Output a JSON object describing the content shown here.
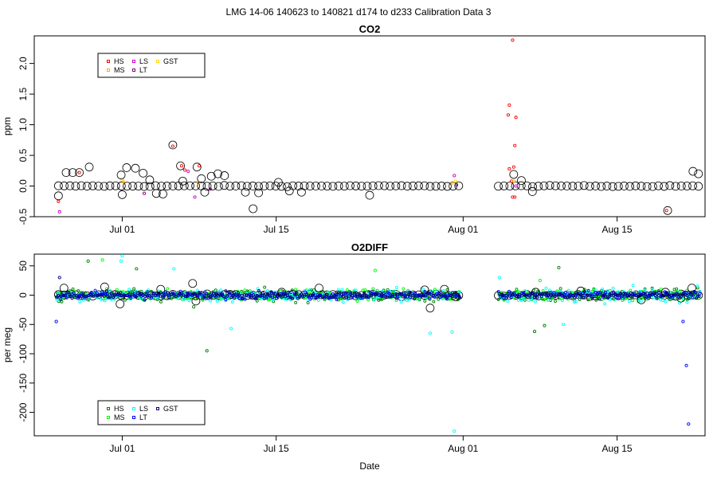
{
  "main_title": "LMG   14-06    140623 to 140821    d174 to d233   Calibration Data 3",
  "chart_data": [
    {
      "type": "scatter",
      "title": "CO2",
      "ylabel": "ppm",
      "xlabel": "",
      "x_range_days": [
        174,
        235
      ],
      "ylim": [
        -0.5,
        2.45
      ],
      "yticks": [
        -0.5,
        0.0,
        0.5,
        1.0,
        1.5,
        2.0
      ],
      "ytick_labels": [
        "-0.5",
        "0.0",
        "0.5",
        "1.0",
        "1.5",
        "2.0"
      ],
      "xticks": [
        182,
        196,
        213,
        227
      ],
      "xtick_labels": [
        "Jul 01",
        "Jul 15",
        "Aug 01",
        "Aug 15"
      ],
      "grid": false,
      "legend_position": "top-left",
      "legend": [
        {
          "name": "HS",
          "color": "#ff0000"
        },
        {
          "name": "LS",
          "color": "#cc00cc"
        },
        {
          "name": "GST",
          "color": "#ffd700"
        },
        {
          "name": "MS",
          "color": "#ffa500"
        },
        {
          "name": "LT",
          "color": "#800080"
        }
      ],
      "series": [
        {
          "name": "HS",
          "color": "#ff0000",
          "points": [
            [
              176.2,
              -0.25
            ],
            [
              178.1,
              0.22
            ],
            [
              186.6,
              0.65
            ],
            [
              187.4,
              0.33
            ],
            [
              187.7,
              0.26
            ],
            [
              189.0,
              0.33
            ],
            [
              217.5,
              2.38
            ],
            [
              217.2,
              1.32
            ],
            [
              217.8,
              1.12
            ],
            [
              217.1,
              1.16
            ],
            [
              217.7,
              0.66
            ],
            [
              217.6,
              0.31
            ],
            [
              217.2,
              0.28
            ],
            [
              217.4,
              0.08
            ],
            [
              217.5,
              -0.18
            ],
            [
              217.7,
              -0.18
            ],
            [
              231.5,
              -0.4
            ]
          ]
        },
        {
          "name": "MS",
          "color": "#ffa500",
          "points": [
            [
              182.1,
              0.07
            ],
            [
              188.9,
              0.05
            ],
            [
              212.0,
              0.05
            ],
            [
              217.6,
              0.08
            ]
          ]
        },
        {
          "name": "LS",
          "color": "#cc00cc",
          "points": [
            [
              176.3,
              -0.42
            ],
            [
              188.0,
              0.24
            ],
            [
              188.6,
              -0.18
            ],
            [
              212.2,
              0.17
            ],
            [
              217.8,
              0.0
            ]
          ]
        },
        {
          "name": "LT",
          "color": "#800080",
          "points": [
            [
              184.0,
              -0.12
            ],
            [
              190.0,
              -0.05
            ],
            [
              212.4,
              0.02
            ]
          ]
        },
        {
          "name": "GST",
          "color": "#ffd700",
          "points": [
            [
              182.0,
              0.1
            ],
            [
              212.3,
              0.08
            ]
          ]
        }
      ],
      "calibration_points": [
        [
          176.2,
          -0.16
        ],
        [
          176.9,
          0.22
        ],
        [
          177.5,
          0.22
        ],
        [
          178.1,
          0.22
        ],
        [
          179.0,
          0.31
        ],
        [
          181.9,
          0.18
        ],
        [
          182.0,
          -0.14
        ],
        [
          182.4,
          0.3
        ],
        [
          183.2,
          0.29
        ],
        [
          183.9,
          0.21
        ],
        [
          184.5,
          0.1
        ],
        [
          185.1,
          -0.12
        ],
        [
          185.7,
          -0.13
        ],
        [
          186.6,
          0.67
        ],
        [
          187.3,
          0.33
        ],
        [
          187.5,
          0.08
        ],
        [
          188.8,
          0.31
        ],
        [
          189.2,
          0.12
        ],
        [
          189.5,
          -0.1
        ],
        [
          190.1,
          0.16
        ],
        [
          190.7,
          0.2
        ],
        [
          191.3,
          0.17
        ],
        [
          193.2,
          -0.1
        ],
        [
          193.9,
          -0.37
        ],
        [
          194.4,
          -0.11
        ],
        [
          196.2,
          0.06
        ],
        [
          197.2,
          -0.08
        ],
        [
          198.3,
          -0.1
        ],
        [
          204.5,
          -0.15
        ],
        [
          217.6,
          0.19
        ],
        [
          218.3,
          0.09
        ],
        [
          219.3,
          -0.09
        ],
        [
          231.6,
          -0.4
        ],
        [
          233.9,
          0.24
        ],
        [
          234.4,
          0.2
        ]
      ],
      "calibration_range_days": [
        [
          176.2,
          212.7
        ],
        [
          216.2,
          234.5
        ]
      ],
      "calibration_baseline": 0.0
    },
    {
      "type": "scatter",
      "title": "O2DIFF",
      "ylabel": "per meg",
      "xlabel": "Date",
      "x_range_days": [
        174,
        235
      ],
      "ylim": [
        -240,
        70
      ],
      "yticks": [
        -200,
        -150,
        -100,
        -50,
        0,
        50
      ],
      "ytick_labels": [
        "-200",
        "-150",
        "-100",
        "-50",
        "0",
        "50"
      ],
      "xticks": [
        182,
        196,
        213,
        227
      ],
      "xtick_labels": [
        "Jul 01",
        "Jul 15",
        "Aug 01",
        "Aug 15"
      ],
      "grid": false,
      "legend_position": "bottom-left",
      "legend": [
        {
          "name": "HS",
          "color": "#008000"
        },
        {
          "name": "LS",
          "color": "#00ffff"
        },
        {
          "name": "GST",
          "color": "#000080"
        },
        {
          "name": "MS",
          "color": "#00ff00"
        },
        {
          "name": "LT",
          "color": "#0000ff"
        }
      ],
      "series": [
        {
          "name": "HS",
          "color": "#008000",
          "spread": 16,
          "ranges": [
            [
              176.0,
              212.7
            ],
            [
              216.2,
              234.5
            ]
          ],
          "outliers": [
            [
              178.9,
              58
            ],
            [
              183.3,
              45
            ],
            [
              189.7,
              -95
            ],
            [
              188.5,
              -20
            ],
            [
              219.5,
              -62
            ],
            [
              220.4,
              -52
            ],
            [
              221.7,
              47
            ]
          ]
        },
        {
          "name": "MS",
          "color": "#00ff00",
          "spread": 14,
          "ranges": [
            [
              176.0,
              212.7
            ],
            [
              216.2,
              234.5
            ]
          ],
          "outliers": [
            [
              180.2,
              60
            ],
            [
              205.0,
              42
            ],
            [
              220.0,
              25
            ]
          ]
        },
        {
          "name": "LS",
          "color": "#00ffff",
          "spread": 18,
          "ranges": [
            [
              176.0,
              212.7
            ],
            [
              216.2,
              234.5
            ]
          ],
          "outliers": [
            [
              182.0,
              67
            ],
            [
              181.9,
              58
            ],
            [
              186.7,
              45
            ],
            [
              191.9,
              -57
            ],
            [
              210.0,
              -65
            ],
            [
              212.2,
              -232
            ],
            [
              212.0,
              -63
            ],
            [
              216.3,
              30
            ],
            [
              222.1,
              -50
            ]
          ]
        },
        {
          "name": "LT",
          "color": "#0000ff",
          "spread": 10,
          "ranges": [
            [
              176.0,
              212.7
            ],
            [
              216.2,
              234.5
            ]
          ],
          "outliers": [
            [
              176.0,
              -45
            ],
            [
              233.0,
              -45
            ],
            [
              233.3,
              -120
            ],
            [
              233.5,
              -220
            ]
          ]
        },
        {
          "name": "GST",
          "color": "#000080",
          "spread": 8,
          "ranges": [
            [
              176.0,
              212.7
            ],
            [
              216.2,
              234.5
            ]
          ],
          "outliers": [
            [
              176.3,
              30
            ]
          ]
        }
      ],
      "calibration_points": [
        [
          176.7,
          12
        ],
        [
          180.4,
          14
        ],
        [
          181.8,
          -15
        ],
        [
          185.5,
          10
        ],
        [
          188.4,
          20
        ],
        [
          188.7,
          -10
        ],
        [
          196.5,
          5
        ],
        [
          199.9,
          12
        ],
        [
          209.5,
          9
        ],
        [
          210.0,
          -22
        ],
        [
          211.3,
          10
        ],
        [
          212.3,
          -3
        ],
        [
          219.6,
          5
        ],
        [
          223.7,
          7
        ],
        [
          229.2,
          -8
        ],
        [
          231.4,
          5
        ],
        [
          232.8,
          -5
        ],
        [
          233.8,
          12
        ]
      ],
      "calibration_range_days": [
        [
          176.2,
          212.7
        ],
        [
          216.2,
          234.5
        ]
      ],
      "calibration_baseline": 0
    }
  ]
}
